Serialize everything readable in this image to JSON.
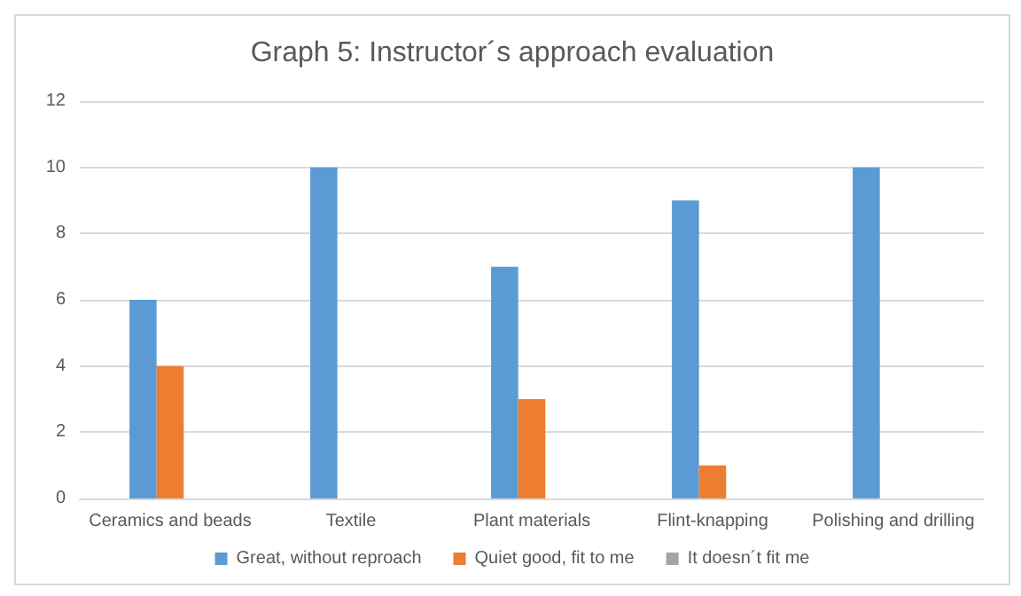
{
  "chart_data": {
    "type": "bar",
    "title": "Graph 5: Instructor´s approach evaluation",
    "categories": [
      "Ceramics and beads",
      "Textile",
      "Plant materials",
      "Flint-knapping",
      "Polishing and drilling"
    ],
    "series": [
      {
        "name": "Great, without reproach",
        "color": "#5b9bd5",
        "values": [
          6,
          10,
          7,
          9,
          10
        ]
      },
      {
        "name": "Quiet good, fit to me",
        "color": "#ed7d31",
        "values": [
          4,
          0,
          3,
          1,
          0
        ]
      },
      {
        "name": "It doesn´t fit me",
        "color": "#a5a5a5",
        "values": [
          0,
          0,
          0,
          0,
          0
        ]
      }
    ],
    "ylim": [
      0,
      12
    ],
    "yticks": [
      0,
      2,
      4,
      6,
      8,
      10,
      12
    ],
    "grid": "y",
    "legend": "bottom"
  }
}
